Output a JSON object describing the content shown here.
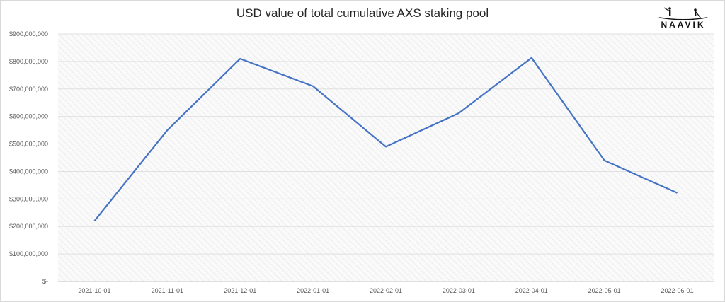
{
  "chart_data": {
    "type": "line",
    "title": "USD value of total cumulative AXS staking pool",
    "xlabel": "",
    "ylabel": "",
    "categories": [
      "2021-10-01",
      "2021-11-01",
      "2021-12-01",
      "2022-01-01",
      "2022-02-01",
      "2022-03-01",
      "2022-04-01",
      "2022-05-01",
      "2022-06-01"
    ],
    "series": [
      {
        "values": [
          220000000,
          550000000,
          810000000,
          710000000,
          490000000,
          612000000,
          813000000,
          440000000,
          322000000
        ]
      }
    ],
    "ylim": [
      0,
      900000000
    ],
    "y_ticks": [
      0,
      100000000,
      200000000,
      300000000,
      400000000,
      500000000,
      600000000,
      700000000,
      800000000,
      900000000
    ],
    "y_tick_labels": [
      "$-",
      "$100,000,000",
      "$200,000,000",
      "$300,000,000",
      "$400,000,000",
      "$500,000,000",
      "$600,000,000",
      "$700,000,000",
      "$800,000,000",
      "$900,000,000"
    ],
    "grid": true,
    "legend": "none",
    "line_color": "#4472c4"
  },
  "brand": {
    "name": "NAAVIK",
    "icon": "boat-logo-icon"
  }
}
